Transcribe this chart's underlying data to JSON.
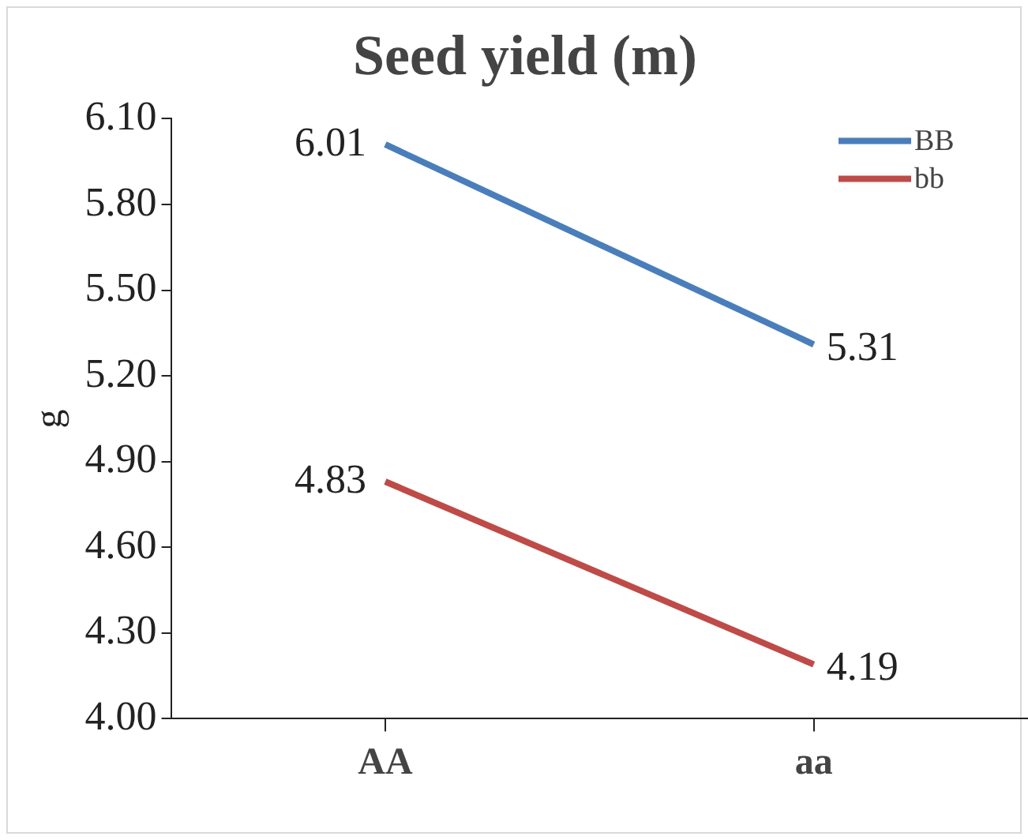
{
  "chart_data": {
    "type": "line",
    "title": "Seed yield (m)",
    "ylabel": "g",
    "categories": [
      "AA",
      "aa"
    ],
    "series": [
      {
        "name": "BB",
        "color": "#4a7ebb",
        "values": [
          6.01,
          5.31
        ]
      },
      {
        "name": "bb",
        "color": "#be4b48",
        "values": [
          4.83,
          4.19
        ]
      }
    ],
    "ylim": [
      4.0,
      6.1
    ],
    "yticks": [
      {
        "value": 4.0,
        "label": "4.00"
      },
      {
        "value": 4.3,
        "label": "4.30"
      },
      {
        "value": 4.6,
        "label": "4.60"
      },
      {
        "value": 4.9,
        "label": "4.90"
      },
      {
        "value": 5.2,
        "label": "5.20"
      },
      {
        "value": 5.5,
        "label": "5.50"
      },
      {
        "value": 5.8,
        "label": "5.80"
      },
      {
        "value": 6.1,
        "label": "6.10"
      }
    ],
    "grid": false,
    "legend": "top right",
    "marker": "none",
    "line_style": "solid",
    "data_labels": true
  }
}
